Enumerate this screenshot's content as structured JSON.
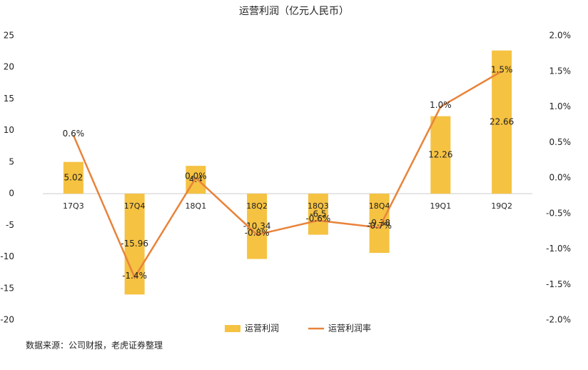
{
  "chart_data": {
    "type": "bar-line",
    "title": "运营利润（亿元人民币）",
    "categories": [
      "17Q3",
      "17Q4",
      "18Q1",
      "18Q2",
      "18Q3",
      "18Q4",
      "19Q1",
      "19Q2"
    ],
    "series": [
      {
        "name": "运营利润",
        "type": "bar",
        "color": "#f5c242",
        "values": [
          5.02,
          -15.96,
          4.4,
          -10.34,
          -6.5,
          -9.38,
          12.26,
          22.66
        ]
      },
      {
        "name": "运营利润率",
        "type": "line",
        "axis": "y2",
        "color": "#e8833a",
        "values": [
          0.6,
          -1.4,
          0.0,
          -0.8,
          -0.6,
          -0.7,
          1.0,
          1.5
        ],
        "value_labels": [
          "0.6%",
          "-1.4%",
          "0.0%",
          "-0.8%",
          "-0.6%",
          "-0.7%",
          "1.0%",
          "1.5%"
        ]
      }
    ],
    "ylim": [
      -20,
      25
    ],
    "yticks": [
      -20,
      -15,
      -10,
      -5,
      0,
      5,
      10,
      15,
      20,
      25
    ],
    "y2lim": [
      -2.0,
      2.0
    ],
    "y2ticks": [
      {
        "value": -2.0,
        "label": "-2.0%"
      },
      {
        "value": -1.5,
        "label": "-1.5%"
      },
      {
        "value": -1.0,
        "label": "-1.0%"
      },
      {
        "value": -0.5,
        "label": "-0.5%"
      },
      {
        "value": 0.0,
        "label": "0.0%"
      },
      {
        "value": 0.5,
        "label": "0.5%"
      },
      {
        "value": 1.0,
        "label": "1.0%"
      },
      {
        "value": 1.5,
        "label": "1.5%"
      },
      {
        "value": 2.0,
        "label": "2.0%"
      }
    ],
    "legend": "bottom",
    "source": "数据来源：公司财报，老虎证券整理"
  }
}
